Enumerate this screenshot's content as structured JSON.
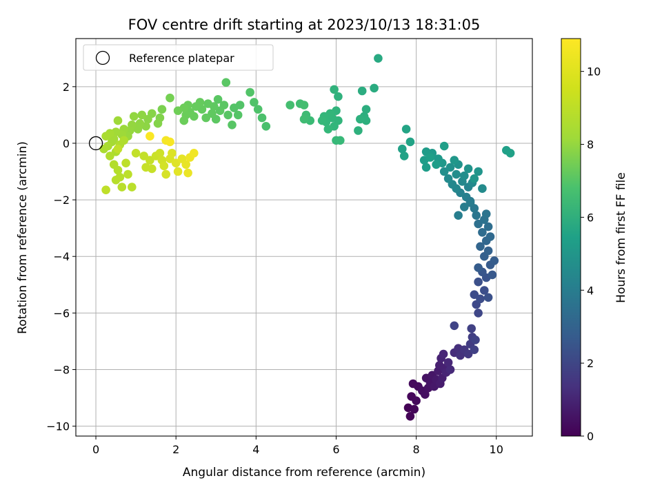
{
  "chart_data": {
    "type": "scatter",
    "title": "FOV centre drift starting at 2023/10/13 18:31:05",
    "xlabel": "Angular distance from reference (arcmin)",
    "ylabel": "Rotation from reference (arcmin)",
    "xlim": [
      -0.5,
      10.9
    ],
    "ylim": [
      -10.35,
      3.7
    ],
    "xticks": [
      0,
      2,
      4,
      6,
      8,
      10
    ],
    "xtick_labels": [
      "0",
      "2",
      "4",
      "6",
      "8",
      "10"
    ],
    "yticks": [
      -10,
      -8,
      -6,
      -4,
      -2,
      0,
      2
    ],
    "ytick_labels": [
      "−10",
      "−8",
      "−6",
      "−4",
      "−2",
      "0",
      "2"
    ],
    "grid": true,
    "colormap": "viridis",
    "colorbar": {
      "label": "Hours from first FF file",
      "range": [
        0,
        10.9
      ],
      "ticks": [
        0,
        2,
        4,
        6,
        8,
        10
      ],
      "tick_labels": [
        "0",
        "2",
        "4",
        "6",
        "8",
        "10"
      ]
    },
    "legend": {
      "location": "upper-left",
      "entries": [
        "Reference platepar"
      ]
    },
    "reference_point": {
      "x": 0,
      "y": 0,
      "marker": "open-circle"
    },
    "points": [
      {
        "x": 7.8,
        "y": -9.35,
        "h": 0.05
      },
      {
        "x": 7.85,
        "y": -9.65,
        "h": 0.1
      },
      {
        "x": 7.95,
        "y": -9.4,
        "h": 0.15
      },
      {
        "x": 7.88,
        "y": -8.95,
        "h": 0.2
      },
      {
        "x": 8.0,
        "y": -9.1,
        "h": 0.25
      },
      {
        "x": 7.92,
        "y": -8.5,
        "h": 0.3
      },
      {
        "x": 8.05,
        "y": -8.6,
        "h": 0.35
      },
      {
        "x": 8.15,
        "y": -8.75,
        "h": 0.4
      },
      {
        "x": 8.22,
        "y": -8.88,
        "h": 0.45
      },
      {
        "x": 8.3,
        "y": -8.65,
        "h": 0.5
      },
      {
        "x": 8.25,
        "y": -8.3,
        "h": 0.55
      },
      {
        "x": 8.35,
        "y": -8.45,
        "h": 0.6
      },
      {
        "x": 8.4,
        "y": -8.2,
        "h": 0.65
      },
      {
        "x": 8.45,
        "y": -8.6,
        "h": 0.7
      },
      {
        "x": 8.5,
        "y": -8.35,
        "h": 0.75
      },
      {
        "x": 8.55,
        "y": -8.05,
        "h": 0.8
      },
      {
        "x": 8.6,
        "y": -8.5,
        "h": 0.85
      },
      {
        "x": 8.65,
        "y": -8.3,
        "h": 0.9
      },
      {
        "x": 8.58,
        "y": -7.85,
        "h": 0.95
      },
      {
        "x": 8.7,
        "y": -7.95,
        "h": 1.0
      },
      {
        "x": 8.62,
        "y": -7.6,
        "h": 1.05
      },
      {
        "x": 8.75,
        "y": -8.1,
        "h": 1.1
      },
      {
        "x": 8.68,
        "y": -7.45,
        "h": 1.15
      },
      {
        "x": 8.8,
        "y": -7.75,
        "h": 1.2
      },
      {
        "x": 8.85,
        "y": -8.0,
        "h": 1.3
      },
      {
        "x": 8.95,
        "y": -7.4,
        "h": 1.4
      },
      {
        "x": 9.05,
        "y": -7.25,
        "h": 1.5
      },
      {
        "x": 9.1,
        "y": -7.5,
        "h": 1.6
      },
      {
        "x": 9.2,
        "y": -7.3,
        "h": 1.7
      },
      {
        "x": 9.3,
        "y": -7.45,
        "h": 1.8
      },
      {
        "x": 9.35,
        "y": -7.1,
        "h": 1.9
      },
      {
        "x": 9.4,
        "y": -6.85,
        "h": 2.0
      },
      {
        "x": 9.45,
        "y": -7.3,
        "h": 2.05
      },
      {
        "x": 9.38,
        "y": -6.55,
        "h": 2.1
      },
      {
        "x": 9.48,
        "y": -6.95,
        "h": 2.15
      },
      {
        "x": 8.95,
        "y": -6.45,
        "h": 2.2
      },
      {
        "x": 9.55,
        "y": -6.0,
        "h": 2.3
      },
      {
        "x": 9.5,
        "y": -5.7,
        "h": 2.4
      },
      {
        "x": 9.45,
        "y": -5.35,
        "h": 2.5
      },
      {
        "x": 9.6,
        "y": -5.5,
        "h": 2.55
      },
      {
        "x": 9.7,
        "y": -5.2,
        "h": 2.6
      },
      {
        "x": 9.55,
        "y": -4.9,
        "h": 2.65
      },
      {
        "x": 9.8,
        "y": -5.45,
        "h": 2.7
      },
      {
        "x": 9.75,
        "y": -4.75,
        "h": 2.8
      },
      {
        "x": 9.65,
        "y": -4.55,
        "h": 2.9
      },
      {
        "x": 9.9,
        "y": -4.65,
        "h": 3.0
      },
      {
        "x": 9.85,
        "y": -4.3,
        "h": 3.1
      },
      {
        "x": 9.55,
        "y": -4.4,
        "h": 3.15
      },
      {
        "x": 9.95,
        "y": -4.15,
        "h": 3.2
      },
      {
        "x": 9.7,
        "y": -4.0,
        "h": 3.3
      },
      {
        "x": 9.8,
        "y": -3.8,
        "h": 3.4
      },
      {
        "x": 9.6,
        "y": -3.65,
        "h": 3.5
      },
      {
        "x": 9.75,
        "y": -3.45,
        "h": 3.6
      },
      {
        "x": 9.85,
        "y": -3.3,
        "h": 3.7
      },
      {
        "x": 9.65,
        "y": -3.15,
        "h": 3.8
      },
      {
        "x": 9.8,
        "y": -2.95,
        "h": 3.9
      },
      {
        "x": 9.55,
        "y": -2.85,
        "h": 4.0
      },
      {
        "x": 9.7,
        "y": -2.7,
        "h": 4.1
      },
      {
        "x": 9.75,
        "y": -2.5,
        "h": 4.2
      },
      {
        "x": 9.5,
        "y": -2.55,
        "h": 4.3
      },
      {
        "x": 9.45,
        "y": -2.3,
        "h": 4.4
      },
      {
        "x": 9.35,
        "y": -2.1,
        "h": 4.5
      },
      {
        "x": 9.2,
        "y": -2.25,
        "h": 4.6
      },
      {
        "x": 9.05,
        "y": -2.55,
        "h": 4.65
      },
      {
        "x": 9.25,
        "y": -1.9,
        "h": 4.7
      },
      {
        "x": 9.1,
        "y": -1.75,
        "h": 4.8
      },
      {
        "x": 9.3,
        "y": -1.55,
        "h": 4.9
      },
      {
        "x": 9.0,
        "y": -1.6,
        "h": 5.0
      },
      {
        "x": 8.9,
        "y": -1.45,
        "h": 5.05
      },
      {
        "x": 9.15,
        "y": -1.35,
        "h": 5.1
      },
      {
        "x": 9.4,
        "y": -1.4,
        "h": 5.15
      },
      {
        "x": 8.8,
        "y": -1.25,
        "h": 5.2
      },
      {
        "x": 9.0,
        "y": -1.1,
        "h": 5.3
      },
      {
        "x": 9.2,
        "y": -1.15,
        "h": 5.35
      },
      {
        "x": 8.7,
        "y": -1.0,
        "h": 5.4
      },
      {
        "x": 8.85,
        "y": -0.85,
        "h": 5.5
      },
      {
        "x": 9.05,
        "y": -0.75,
        "h": 5.55
      },
      {
        "x": 9.3,
        "y": -0.9,
        "h": 5.6
      },
      {
        "x": 9.55,
        "y": -1.0,
        "h": 5.65
      },
      {
        "x": 9.45,
        "y": -1.25,
        "h": 5.7
      },
      {
        "x": 8.95,
        "y": -0.6,
        "h": 5.75
      },
      {
        "x": 8.65,
        "y": -0.7,
        "h": 5.8
      },
      {
        "x": 8.55,
        "y": -0.55,
        "h": 5.85
      },
      {
        "x": 8.4,
        "y": -0.35,
        "h": 5.9
      },
      {
        "x": 8.25,
        "y": -0.3,
        "h": 5.95
      },
      {
        "x": 8.2,
        "y": -0.6,
        "h": 6.0
      },
      {
        "x": 8.25,
        "y": -0.85,
        "h": 6.02
      },
      {
        "x": 8.5,
        "y": -0.75,
        "h": 6.05
      },
      {
        "x": 8.7,
        "y": -0.1,
        "h": 6.1
      },
      {
        "x": 8.35,
        "y": -0.5,
        "h": 6.12
      },
      {
        "x": 7.65,
        "y": -0.2,
        "h": 6.2
      },
      {
        "x": 7.7,
        "y": -0.45,
        "h": 6.25
      },
      {
        "x": 7.85,
        "y": 0.05,
        "h": 6.3
      },
      {
        "x": 7.75,
        "y": 0.5,
        "h": 6.35
      },
      {
        "x": 10.25,
        "y": -0.25,
        "h": 6.15
      },
      {
        "x": 10.35,
        "y": -0.35,
        "h": 6.18
      },
      {
        "x": 9.65,
        "y": -1.6,
        "h": 5.25
      },
      {
        "x": 9.35,
        "y": -2.05,
        "h": 4.55
      },
      {
        "x": 7.05,
        "y": 3.0,
        "h": 6.6
      },
      {
        "x": 6.95,
        "y": 1.95,
        "h": 6.7
      },
      {
        "x": 6.65,
        "y": 1.85,
        "h": 6.75
      },
      {
        "x": 6.75,
        "y": 1.2,
        "h": 6.8
      },
      {
        "x": 6.7,
        "y": 0.95,
        "h": 6.85
      },
      {
        "x": 6.75,
        "y": 0.8,
        "h": 6.9
      },
      {
        "x": 6.6,
        "y": 0.85,
        "h": 6.92
      },
      {
        "x": 6.55,
        "y": 0.45,
        "h": 6.95
      },
      {
        "x": 6.05,
        "y": 1.65,
        "h": 7.0
      },
      {
        "x": 5.95,
        "y": 1.9,
        "h": 7.02
      },
      {
        "x": 6.0,
        "y": 1.15,
        "h": 7.05
      },
      {
        "x": 5.9,
        "y": 0.9,
        "h": 7.1
      },
      {
        "x": 6.05,
        "y": 0.8,
        "h": 7.12
      },
      {
        "x": 5.95,
        "y": 0.6,
        "h": 7.15
      },
      {
        "x": 5.85,
        "y": 1.05,
        "h": 7.18
      },
      {
        "x": 5.75,
        "y": 0.75,
        "h": 7.2
      },
      {
        "x": 5.7,
        "y": 0.95,
        "h": 7.22
      },
      {
        "x": 5.8,
        "y": 0.5,
        "h": 7.25
      },
      {
        "x": 5.65,
        "y": 0.8,
        "h": 7.28
      },
      {
        "x": 6.0,
        "y": 0.1,
        "h": 7.3
      },
      {
        "x": 6.1,
        "y": 0.1,
        "h": 7.32
      },
      {
        "x": 5.35,
        "y": 0.8,
        "h": 7.4
      },
      {
        "x": 5.25,
        "y": 1.0,
        "h": 7.45
      },
      {
        "x": 5.2,
        "y": 0.85,
        "h": 7.5
      },
      {
        "x": 5.1,
        "y": 1.4,
        "h": 7.55
      },
      {
        "x": 5.2,
        "y": 1.35,
        "h": 7.58
      },
      {
        "x": 4.85,
        "y": 1.35,
        "h": 7.6
      },
      {
        "x": 4.25,
        "y": 0.6,
        "h": 7.7
      },
      {
        "x": 4.15,
        "y": 0.9,
        "h": 7.75
      },
      {
        "x": 4.05,
        "y": 1.2,
        "h": 7.8
      },
      {
        "x": 3.95,
        "y": 1.45,
        "h": 7.85
      },
      {
        "x": 3.85,
        "y": 1.8,
        "h": 7.88
      },
      {
        "x": 3.6,
        "y": 1.35,
        "h": 7.9
      },
      {
        "x": 3.55,
        "y": 1.0,
        "h": 7.95
      },
      {
        "x": 3.4,
        "y": 0.65,
        "h": 8.0
      },
      {
        "x": 3.3,
        "y": 1.0,
        "h": 8.02
      },
      {
        "x": 3.25,
        "y": 2.15,
        "h": 8.05
      },
      {
        "x": 3.2,
        "y": 1.35,
        "h": 8.08
      },
      {
        "x": 3.1,
        "y": 1.15,
        "h": 8.1
      },
      {
        "x": 3.0,
        "y": 0.85,
        "h": 8.12
      },
      {
        "x": 2.95,
        "y": 1.3,
        "h": 8.15
      },
      {
        "x": 2.9,
        "y": 1.05,
        "h": 8.18
      },
      {
        "x": 2.8,
        "y": 1.4,
        "h": 8.2
      },
      {
        "x": 2.75,
        "y": 0.9,
        "h": 8.22
      },
      {
        "x": 2.65,
        "y": 1.2,
        "h": 8.25
      },
      {
        "x": 2.6,
        "y": 1.45,
        "h": 8.28
      },
      {
        "x": 2.5,
        "y": 1.3,
        "h": 8.3
      },
      {
        "x": 2.45,
        "y": 0.95,
        "h": 8.32
      },
      {
        "x": 2.35,
        "y": 1.1,
        "h": 8.35
      },
      {
        "x": 2.3,
        "y": 1.35,
        "h": 8.38
      },
      {
        "x": 2.25,
        "y": 1.0,
        "h": 8.4
      },
      {
        "x": 2.2,
        "y": 0.8,
        "h": 8.42
      },
      {
        "x": 2.2,
        "y": 1.25,
        "h": 8.45
      },
      {
        "x": 3.45,
        "y": 1.25,
        "h": 7.92
      },
      {
        "x": 3.05,
        "y": 1.55,
        "h": 8.06
      },
      {
        "x": 1.85,
        "y": 1.6,
        "h": 8.6
      },
      {
        "x": 2.05,
        "y": 1.15,
        "h": 8.5
      },
      {
        "x": 1.65,
        "y": 1.2,
        "h": 8.7
      },
      {
        "x": 1.6,
        "y": 0.9,
        "h": 8.8
      },
      {
        "x": 1.55,
        "y": 0.7,
        "h": 8.85
      },
      {
        "x": 1.4,
        "y": 1.05,
        "h": 8.9
      },
      {
        "x": 1.3,
        "y": 0.85,
        "h": 8.95
      },
      {
        "x": 1.25,
        "y": 0.6,
        "h": 9.0
      },
      {
        "x": 1.15,
        "y": 1.0,
        "h": 9.02
      },
      {
        "x": 1.1,
        "y": 0.7,
        "h": 9.05
      },
      {
        "x": 1.05,
        "y": 0.5,
        "h": 9.08
      },
      {
        "x": 0.95,
        "y": 0.95,
        "h": 9.1
      },
      {
        "x": 0.9,
        "y": 0.65,
        "h": 9.12
      },
      {
        "x": 0.85,
        "y": 0.45,
        "h": 9.15
      },
      {
        "x": 0.8,
        "y": 0.25,
        "h": 9.2
      },
      {
        "x": 0.7,
        "y": 0.5,
        "h": 9.25
      },
      {
        "x": 0.65,
        "y": 0.3,
        "h": 9.3
      },
      {
        "x": 0.55,
        "y": 0.8,
        "h": 9.32
      },
      {
        "x": 0.5,
        "y": 0.4,
        "h": 9.35
      },
      {
        "x": 0.45,
        "y": 0.15,
        "h": 9.4
      },
      {
        "x": 0.4,
        "y": 0.05,
        "h": 9.42
      },
      {
        "x": 0.35,
        "y": 0.35,
        "h": 9.45
      },
      {
        "x": 0.3,
        "y": -0.1,
        "h": 9.48
      },
      {
        "x": 0.25,
        "y": 0.25,
        "h": 9.5
      },
      {
        "x": 0.2,
        "y": -0.2,
        "h": 9.52
      },
      {
        "x": 0.5,
        "y": -0.3,
        "h": 9.55
      },
      {
        "x": 0.6,
        "y": -0.05,
        "h": 9.58
      },
      {
        "x": 0.7,
        "y": 0.1,
        "h": 9.6
      },
      {
        "x": 0.35,
        "y": -0.45,
        "h": 9.62
      },
      {
        "x": 0.45,
        "y": -0.75,
        "h": 9.65
      },
      {
        "x": 0.55,
        "y": -0.95,
        "h": 9.68
      },
      {
        "x": 0.6,
        "y": -1.2,
        "h": 9.7
      },
      {
        "x": 0.5,
        "y": -1.3,
        "h": 9.72
      },
      {
        "x": 0.65,
        "y": -1.55,
        "h": 9.75
      },
      {
        "x": 0.9,
        "y": -1.55,
        "h": 9.78
      },
      {
        "x": 0.8,
        "y": -1.1,
        "h": 9.8
      },
      {
        "x": 0.75,
        "y": -0.7,
        "h": 9.82
      },
      {
        "x": 0.25,
        "y": -1.65,
        "h": 9.85
      },
      {
        "x": 0.55,
        "y": -0.2,
        "h": 9.87
      },
      {
        "x": 1.0,
        "y": -0.35,
        "h": 9.9
      },
      {
        "x": 1.2,
        "y": -0.45,
        "h": 9.92
      },
      {
        "x": 1.35,
        "y": -0.6,
        "h": 9.95
      },
      {
        "x": 1.25,
        "y": -0.85,
        "h": 9.98
      },
      {
        "x": 1.4,
        "y": -0.9,
        "h": 10.0
      },
      {
        "x": 1.5,
        "y": -0.45,
        "h": 10.05
      },
      {
        "x": 1.6,
        "y": -0.35,
        "h": 10.1
      },
      {
        "x": 1.65,
        "y": -0.6,
        "h": 10.15
      },
      {
        "x": 1.7,
        "y": -0.8,
        "h": 10.2
      },
      {
        "x": 1.75,
        "y": -1.1,
        "h": 10.25
      },
      {
        "x": 1.85,
        "y": -0.55,
        "h": 10.3
      },
      {
        "x": 1.9,
        "y": -0.35,
        "h": 10.35
      },
      {
        "x": 2.0,
        "y": -0.7,
        "h": 10.4
      },
      {
        "x": 2.05,
        "y": -1.0,
        "h": 10.45
      },
      {
        "x": 2.15,
        "y": -0.55,
        "h": 10.5
      },
      {
        "x": 2.25,
        "y": -0.75,
        "h": 10.55
      },
      {
        "x": 2.3,
        "y": -1.05,
        "h": 10.6
      },
      {
        "x": 2.35,
        "y": -0.5,
        "h": 10.65
      },
      {
        "x": 2.45,
        "y": -0.35,
        "h": 10.7
      },
      {
        "x": 1.75,
        "y": 0.1,
        "h": 10.75
      },
      {
        "x": 1.85,
        "y": 0.05,
        "h": 10.8
      },
      {
        "x": 1.35,
        "y": 0.25,
        "h": 10.85
      }
    ]
  }
}
